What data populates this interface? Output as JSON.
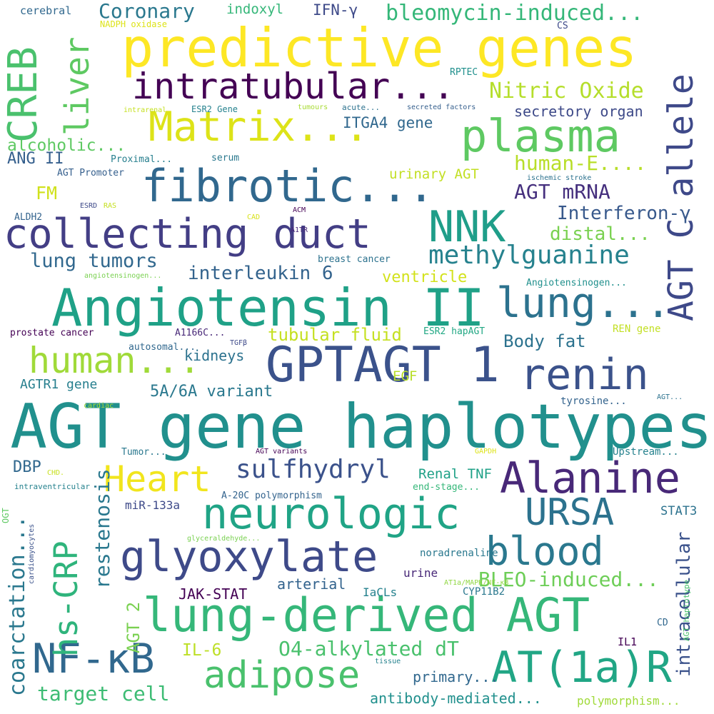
{
  "background": "#ffffff",
  "words": [
    {
      "text": "AGT gene haplotypes",
      "color": "#21908d"
    },
    {
      "text": "predictive genes",
      "color": "#fde725"
    },
    {
      "text": "Angiotensin II",
      "color": "#1fa187"
    },
    {
      "text": "GPTAGT 1",
      "color": "#3b528b"
    },
    {
      "text": "collecting duct",
      "color": "#433e85"
    },
    {
      "text": "fibrotic...",
      "color": "#31688e"
    },
    {
      "text": "Matrix...",
      "color": "#dde318"
    },
    {
      "text": "plasma",
      "color": "#5ec962"
    },
    {
      "text": "lung-derived AGT",
      "color": "#35b779"
    },
    {
      "text": "neurologic",
      "color": "#20a486"
    },
    {
      "text": "glyoxylate",
      "color": "#3e4a89"
    },
    {
      "text": "renin",
      "color": "#3b528b"
    },
    {
      "text": "lung...",
      "color": "#2c728e"
    },
    {
      "text": "Alanine",
      "color": "#482878"
    },
    {
      "text": "NNK",
      "color": "#1f9e89"
    },
    {
      "text": "AT(1a)R",
      "color": "#21a685"
    },
    {
      "text": "NF-κB",
      "color": "#31688e"
    },
    {
      "text": "intratubular...",
      "color": "#440154"
    },
    {
      "text": "blood",
      "color": "#2a788e"
    },
    {
      "text": "URSA",
      "color": "#2c728e"
    },
    {
      "text": "adipose",
      "color": "#4ac16d"
    },
    {
      "text": "human...",
      "color": "#a0da39"
    },
    {
      "text": "Heart",
      "color": "#f1e51d"
    },
    {
      "text": "methylguanine",
      "color": "#26828e"
    },
    {
      "text": "sulfhydryl",
      "color": "#3b528b"
    },
    {
      "text": "Coronary",
      "color": "#2a788e"
    },
    {
      "text": "bleomycin-induced...",
      "color": "#35b779"
    },
    {
      "text": "Nitric Oxide",
      "color": "#b5de2b"
    },
    {
      "text": "human-E....",
      "color": "#b8de29"
    },
    {
      "text": "AGT mRNA",
      "color": "#46307e"
    },
    {
      "text": "Interferon-γ",
      "color": "#38598c"
    },
    {
      "text": "distal...",
      "color": "#7ad151"
    },
    {
      "text": "lung tumors",
      "color": "#31688e"
    },
    {
      "text": "interleukin 6",
      "color": "#33638d"
    },
    {
      "text": "ventricle",
      "color": "#d2e21b"
    },
    {
      "text": "BLEO-induced...",
      "color": "#6ece58"
    },
    {
      "text": "O4-alkylated dT",
      "color": "#4ac16d"
    },
    {
      "text": "target cell",
      "color": "#3dbc74"
    },
    {
      "text": "tubular fluid",
      "color": "#c5e021"
    },
    {
      "text": "Body fat",
      "color": "#2c728e"
    },
    {
      "text": "5A/6A variant",
      "color": "#2a788e"
    },
    {
      "text": "secretory organ",
      "color": "#3e4a89"
    },
    {
      "text": "ITGA4 gene",
      "color": "#31688e"
    },
    {
      "text": "alcoholic...",
      "color": "#5ec962"
    },
    {
      "text": "urinary AGT",
      "color": "#c2df23"
    },
    {
      "text": "ANG II",
      "color": "#355f8d"
    },
    {
      "text": "FM",
      "color": "#d0e11c"
    },
    {
      "text": "IFN-γ",
      "color": "#3e4a89"
    },
    {
      "text": "indoxyl",
      "color": "#35b779"
    },
    {
      "text": "CREB",
      "color": "#4ac16d"
    },
    {
      "text": "liver",
      "color": "#5ec962"
    },
    {
      "text": "AGT C allele",
      "color": "#3e4989"
    },
    {
      "text": "hs-CRP",
      "color": "#2fb47c"
    },
    {
      "text": "restenosis",
      "color": "#2a788e"
    },
    {
      "text": "coarctation...",
      "color": "#2a788e"
    },
    {
      "text": "AGT 2",
      "color": "#7ad151"
    },
    {
      "text": "intracellular",
      "color": "#3b528b"
    },
    {
      "text": "kidneys",
      "color": "#2c728e"
    },
    {
      "text": "EGF",
      "color": "#b8de29"
    },
    {
      "text": "JAK-STAT",
      "color": "#440154"
    },
    {
      "text": "arterial",
      "color": "#33638d"
    },
    {
      "text": "IL-6",
      "color": "#bddf26"
    },
    {
      "text": "DBP",
      "color": "#31688e"
    },
    {
      "text": "miR-133a",
      "color": "#3e4a89"
    },
    {
      "text": "Renal TNF",
      "color": "#1fa187"
    },
    {
      "text": "STAT3",
      "color": "#2c728e"
    },
    {
      "text": "urine",
      "color": "#482878"
    },
    {
      "text": "IaCLs",
      "color": "#26828e"
    },
    {
      "text": "CYP11B2",
      "color": "#2a788e"
    },
    {
      "text": "primary...",
      "color": "#31688e"
    },
    {
      "text": "antibody-mediated...",
      "color": "#21908d"
    },
    {
      "text": "polymorphism...",
      "color": "#a0da39"
    },
    {
      "text": "IL1",
      "color": "#440154"
    },
    {
      "text": "AGTR1 gene",
      "color": "#277f8e"
    },
    {
      "text": "noradrenaline",
      "color": "#2a788e"
    },
    {
      "text": "Upstream...",
      "color": "#26828e"
    },
    {
      "text": "A-20C polymorphism",
      "color": "#33638d"
    },
    {
      "text": "end-stage...",
      "color": "#35b779"
    },
    {
      "text": "tyrosine...",
      "color": "#33638d"
    },
    {
      "text": "prostate cancer",
      "color": "#440154"
    },
    {
      "text": "A1166C...",
      "color": "#482878"
    },
    {
      "text": "autosomal...",
      "color": "#31688e"
    },
    {
      "text": "ESR2 hapAGT",
      "color": "#22a884"
    },
    {
      "text": "REN gene",
      "color": "#c2df23"
    },
    {
      "text": "breast cancer",
      "color": "#2c728e"
    },
    {
      "text": "Angiotensinogen...",
      "color": "#21908d"
    },
    {
      "text": "Proximal...",
      "color": "#277f8e"
    },
    {
      "text": "AGT Promoter",
      "color": "#355f8d"
    },
    {
      "text": "serum",
      "color": "#2a788e"
    },
    {
      "text": "ALDH2",
      "color": "#33638d"
    },
    {
      "text": "cerebral",
      "color": "#31688e"
    },
    {
      "text": "NADPH oxidase",
      "color": "#dde318"
    },
    {
      "text": "CS",
      "color": "#3e4a89"
    },
    {
      "text": "RPTEC",
      "color": "#21908d"
    },
    {
      "text": "intrarenal",
      "color": "#c5e021"
    },
    {
      "text": "ESR2 Gene",
      "color": "#26828e"
    },
    {
      "text": "tumours",
      "color": "#a8db34"
    },
    {
      "text": "acute...",
      "color": "#2c728e"
    },
    {
      "text": "secreted factors",
      "color": "#355f8d"
    },
    {
      "text": "ischemic stroke",
      "color": "#2c728e"
    },
    {
      "text": "ESRD",
      "color": "#3e4a89"
    },
    {
      "text": "RAS",
      "color": "#c5e021"
    },
    {
      "text": "CAD",
      "color": "#d8e219"
    },
    {
      "text": "ACM",
      "color": "#440154"
    },
    {
      "text": "A1TR",
      "color": "#482878"
    },
    {
      "text": "angiotensinogen...",
      "color": "#7ad151"
    },
    {
      "text": "TGFβ",
      "color": "#3e4a89"
    },
    {
      "text": "cardiac",
      "color": "#a8db34"
    },
    {
      "text": "AGT...",
      "color": "#2c728e"
    },
    {
      "text": "Tumor...",
      "color": "#2a788e"
    },
    {
      "text": "AGT variants",
      "color": "#440154"
    },
    {
      "text": "GAPDH",
      "color": "#dde318"
    },
    {
      "text": "CHD.",
      "color": "#c8e020"
    },
    {
      "text": "intraventricular",
      "color": "#26828e"
    },
    {
      "text": "OGT",
      "color": "#5ec962"
    },
    {
      "text": "cardiomyocytes",
      "color": "#3b528b"
    },
    {
      "text": "glyceraldehyde...",
      "color": "#7ad151"
    },
    {
      "text": "AT1a/MAPK/NF-κB",
      "color": "#90d743"
    },
    {
      "text": "tissue",
      "color": "#26828e"
    },
    {
      "text": "AGT haplotype",
      "color": "#4ac16d"
    },
    {
      "text": "CD",
      "color": "#31688e"
    }
  ]
}
